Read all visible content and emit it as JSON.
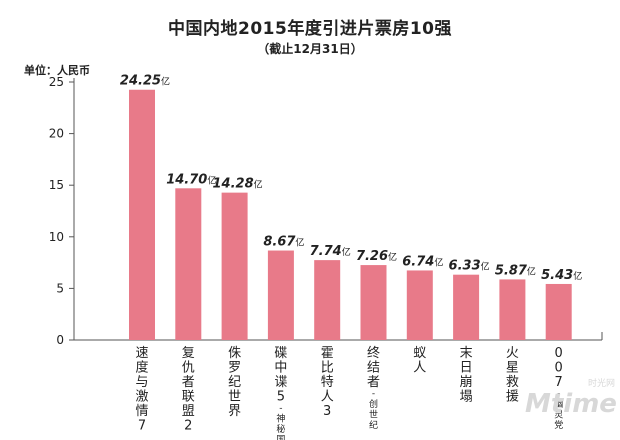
{
  "title": "中国内地2015年度引进片票房10强",
  "subtitle": "（截止12月31日）",
  "unit_label": "单位：人民币",
  "watermark": {
    "top": "时光网",
    "main": "Mtime"
  },
  "colors": {
    "bar": "#e87a89",
    "axis": "#555555",
    "text": "#222222"
  },
  "chart_data": {
    "type": "bar",
    "title": "中国内地2015年度引进片票房10强",
    "ylabel": "单位：人民币",
    "xlabel": "",
    "ylim": [
      0,
      25
    ],
    "yticks": [
      0,
      5,
      10,
      15,
      20,
      25
    ],
    "grid": false,
    "value_unit": "亿",
    "categories": [
      {
        "name": "速度与激情7",
        "note": ""
      },
      {
        "name": "复仇者联盟2",
        "note": ""
      },
      {
        "name": "侏罗纪世界",
        "note": ""
      },
      {
        "name": "碟中谍5",
        "note": "神秘国度"
      },
      {
        "name": "霍比特人3",
        "note": ""
      },
      {
        "name": "终结者",
        "note": "创世纪"
      },
      {
        "name": "蚁人",
        "note": ""
      },
      {
        "name": "末日崩塌",
        "note": ""
      },
      {
        "name": "火星救援",
        "note": ""
      },
      {
        "name": "007",
        "note": "幽灵党"
      }
    ],
    "values": [
      24.25,
      14.7,
      14.28,
      8.67,
      7.74,
      7.26,
      6.74,
      6.33,
      5.87,
      5.43
    ],
    "value_labels": [
      "24.25",
      "14.70",
      "14.28",
      "8.67",
      "7.74",
      "7.26",
      "6.74",
      "6.33",
      "5.87",
      "5.43"
    ]
  }
}
